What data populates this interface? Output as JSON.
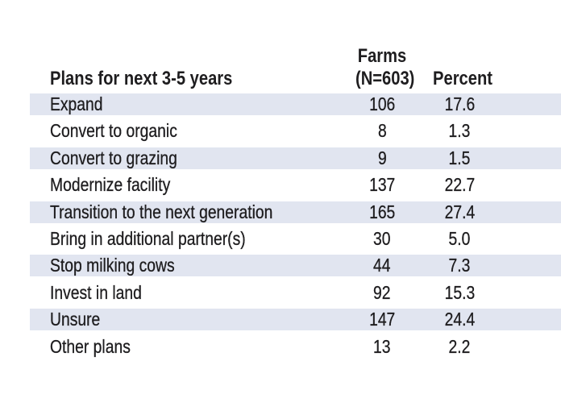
{
  "table": {
    "header": {
      "plans": "Plans for next 3-5 years",
      "farms_line1": "Farms",
      "farms_line2": "(N=603)",
      "percent": "Percent"
    },
    "rows": [
      {
        "label": "Expand",
        "farms": "106",
        "percent": "17.6"
      },
      {
        "label": "Convert to organic",
        "farms": "8",
        "percent": "1.3"
      },
      {
        "label": "Convert to grazing",
        "farms": "9",
        "percent": "1.5"
      },
      {
        "label": "Modernize facility",
        "farms": "137",
        "percent": "22.7"
      },
      {
        "label": "Transition to the next generation",
        "farms": "165",
        "percent": "27.4"
      },
      {
        "label": "Bring in additional partner(s)",
        "farms": "30",
        "percent": "5.0"
      },
      {
        "label": "Stop milking cows",
        "farms": "44",
        "percent": "7.3"
      },
      {
        "label": "Invest in land",
        "farms": "92",
        "percent": "15.3"
      },
      {
        "label": "Unsure",
        "farms": "147",
        "percent": "24.4"
      },
      {
        "label": "Other plans",
        "farms": "13",
        "percent": "2.2"
      }
    ]
  },
  "colors": {
    "row_band": "#e1e5f0",
    "text": "#1e1d1f",
    "background": "#ffffff"
  },
  "chart_data": {
    "type": "table",
    "title": "",
    "columns": [
      "Plans for next 3-5 years",
      "Farms (N=603)",
      "Percent"
    ],
    "categories": [
      "Expand",
      "Convert to organic",
      "Convert to grazing",
      "Modernize facility",
      "Transition to the next generation",
      "Bring in additional partner(s)",
      "Stop milking cows",
      "Invest in land",
      "Unsure",
      "Other plans"
    ],
    "series": [
      {
        "name": "Farms (N=603)",
        "values": [
          106,
          8,
          9,
          137,
          165,
          30,
          44,
          92,
          147,
          13
        ]
      },
      {
        "name": "Percent",
        "values": [
          17.6,
          1.3,
          1.5,
          22.7,
          27.4,
          5.0,
          7.3,
          15.3,
          24.4,
          2.2
        ]
      }
    ],
    "layout_hints": {
      "striped_rows": true,
      "stripe_start": "first_data_row",
      "grid": false
    }
  }
}
